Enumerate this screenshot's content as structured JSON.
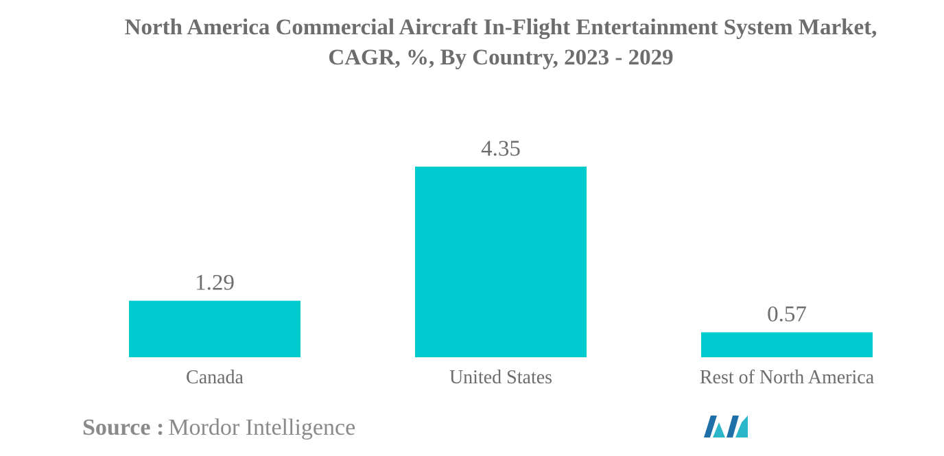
{
  "chart_data": {
    "type": "bar",
    "title_lines": [
      "North America Commercial Aircraft In-Flight Entertainment System Market,",
      "CAGR, %, By Country, 2023 - 2029"
    ],
    "categories": [
      "Canada",
      "United States",
      "Rest of North America"
    ],
    "values": [
      1.29,
      4.35,
      0.57
    ],
    "value_labels": [
      "1.29",
      "4.35",
      "0.57"
    ],
    "bar_color": "#00cccf",
    "ylim": [
      0,
      4.35
    ],
    "grid": false,
    "legend": false,
    "xlabel": "",
    "ylabel": ""
  },
  "source": {
    "label": "Source :",
    "value": "Mordor Intelligence"
  },
  "logo": {
    "colors": [
      "#1f6fa8",
      "#2bb7c9"
    ]
  }
}
